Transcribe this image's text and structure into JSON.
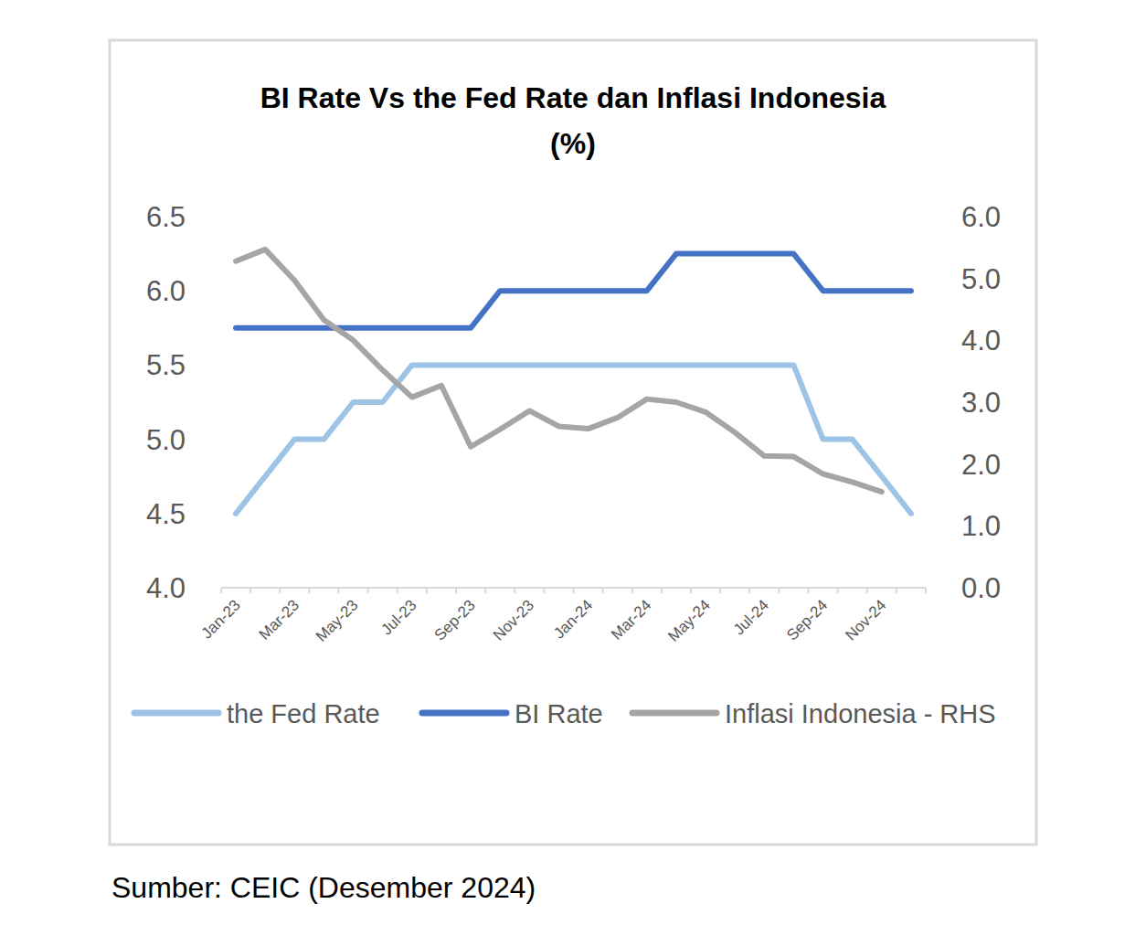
{
  "chart_data": {
    "type": "line",
    "title": "BI Rate Vs the Fed Rate dan Inflasi Indonesia",
    "subtitle": "(%)",
    "source": "Sumber: CEIC (Desember 2024)",
    "categories": [
      "Jan-23",
      null,
      "Mar-23",
      null,
      "May-23",
      null,
      "Jul-23",
      null,
      "Sep-23",
      null,
      "Nov-23",
      null,
      "Jan-24",
      null,
      "Mar-24",
      null,
      "May-24",
      null,
      "Jul-24",
      null,
      "Sep-24",
      null,
      "Nov-24",
      null
    ],
    "series": [
      {
        "name": "the Fed Rate",
        "color": "#9dc3e6",
        "values": [
          4.5,
          4.75,
          5.0,
          5.0,
          5.25,
          5.25,
          5.5,
          5.5,
          5.5,
          5.5,
          5.5,
          5.5,
          5.5,
          5.5,
          5.5,
          5.5,
          5.5,
          5.5,
          5.5,
          5.5,
          5.0,
          5.0,
          4.75,
          4.5
        ]
      },
      {
        "name": "BI Rate",
        "color": "#4472c4",
        "values": [
          5.75,
          5.75,
          5.75,
          5.75,
          5.75,
          5.75,
          5.75,
          5.75,
          5.75,
          6.0,
          6.0,
          6.0,
          6.0,
          6.0,
          6.0,
          6.25,
          6.25,
          6.25,
          6.25,
          6.25,
          6.0,
          6.0,
          6.0,
          6.0
        ]
      },
      {
        "name": "Inflasi Indonesia - RHS",
        "color": "#a5a5a5",
        "axis": "y2",
        "values": [
          5.28,
          5.47,
          4.97,
          4.33,
          4.0,
          3.52,
          3.08,
          3.27,
          2.28,
          2.56,
          2.86,
          2.61,
          2.57,
          2.75,
          3.05,
          3.0,
          2.84,
          2.51,
          2.13,
          2.12,
          1.84,
          1.71,
          1.55,
          null
        ]
      }
    ],
    "ylim": [
      4,
      6.5
    ],
    "yticks": [
      {
        "value": 4,
        "label": "4.0"
      },
      4.5,
      {
        "value": 5,
        "label": "5.0"
      },
      5.5,
      {
        "value": 6,
        "label": "6.0"
      },
      6.5
    ],
    "y2lim": [
      0,
      6
    ],
    "y2ticks": [
      {
        "value": 0,
        "label": "0.0"
      },
      {
        "value": 1,
        "label": "1.0"
      },
      {
        "value": 2,
        "label": "2.0"
      },
      {
        "value": 3,
        "label": "3.0"
      },
      {
        "value": 4,
        "label": "4.0"
      },
      {
        "value": 5,
        "label": "5.0"
      },
      {
        "value": 6,
        "label": "6.0"
      }
    ],
    "grid": false,
    "legend": "bottom"
  }
}
